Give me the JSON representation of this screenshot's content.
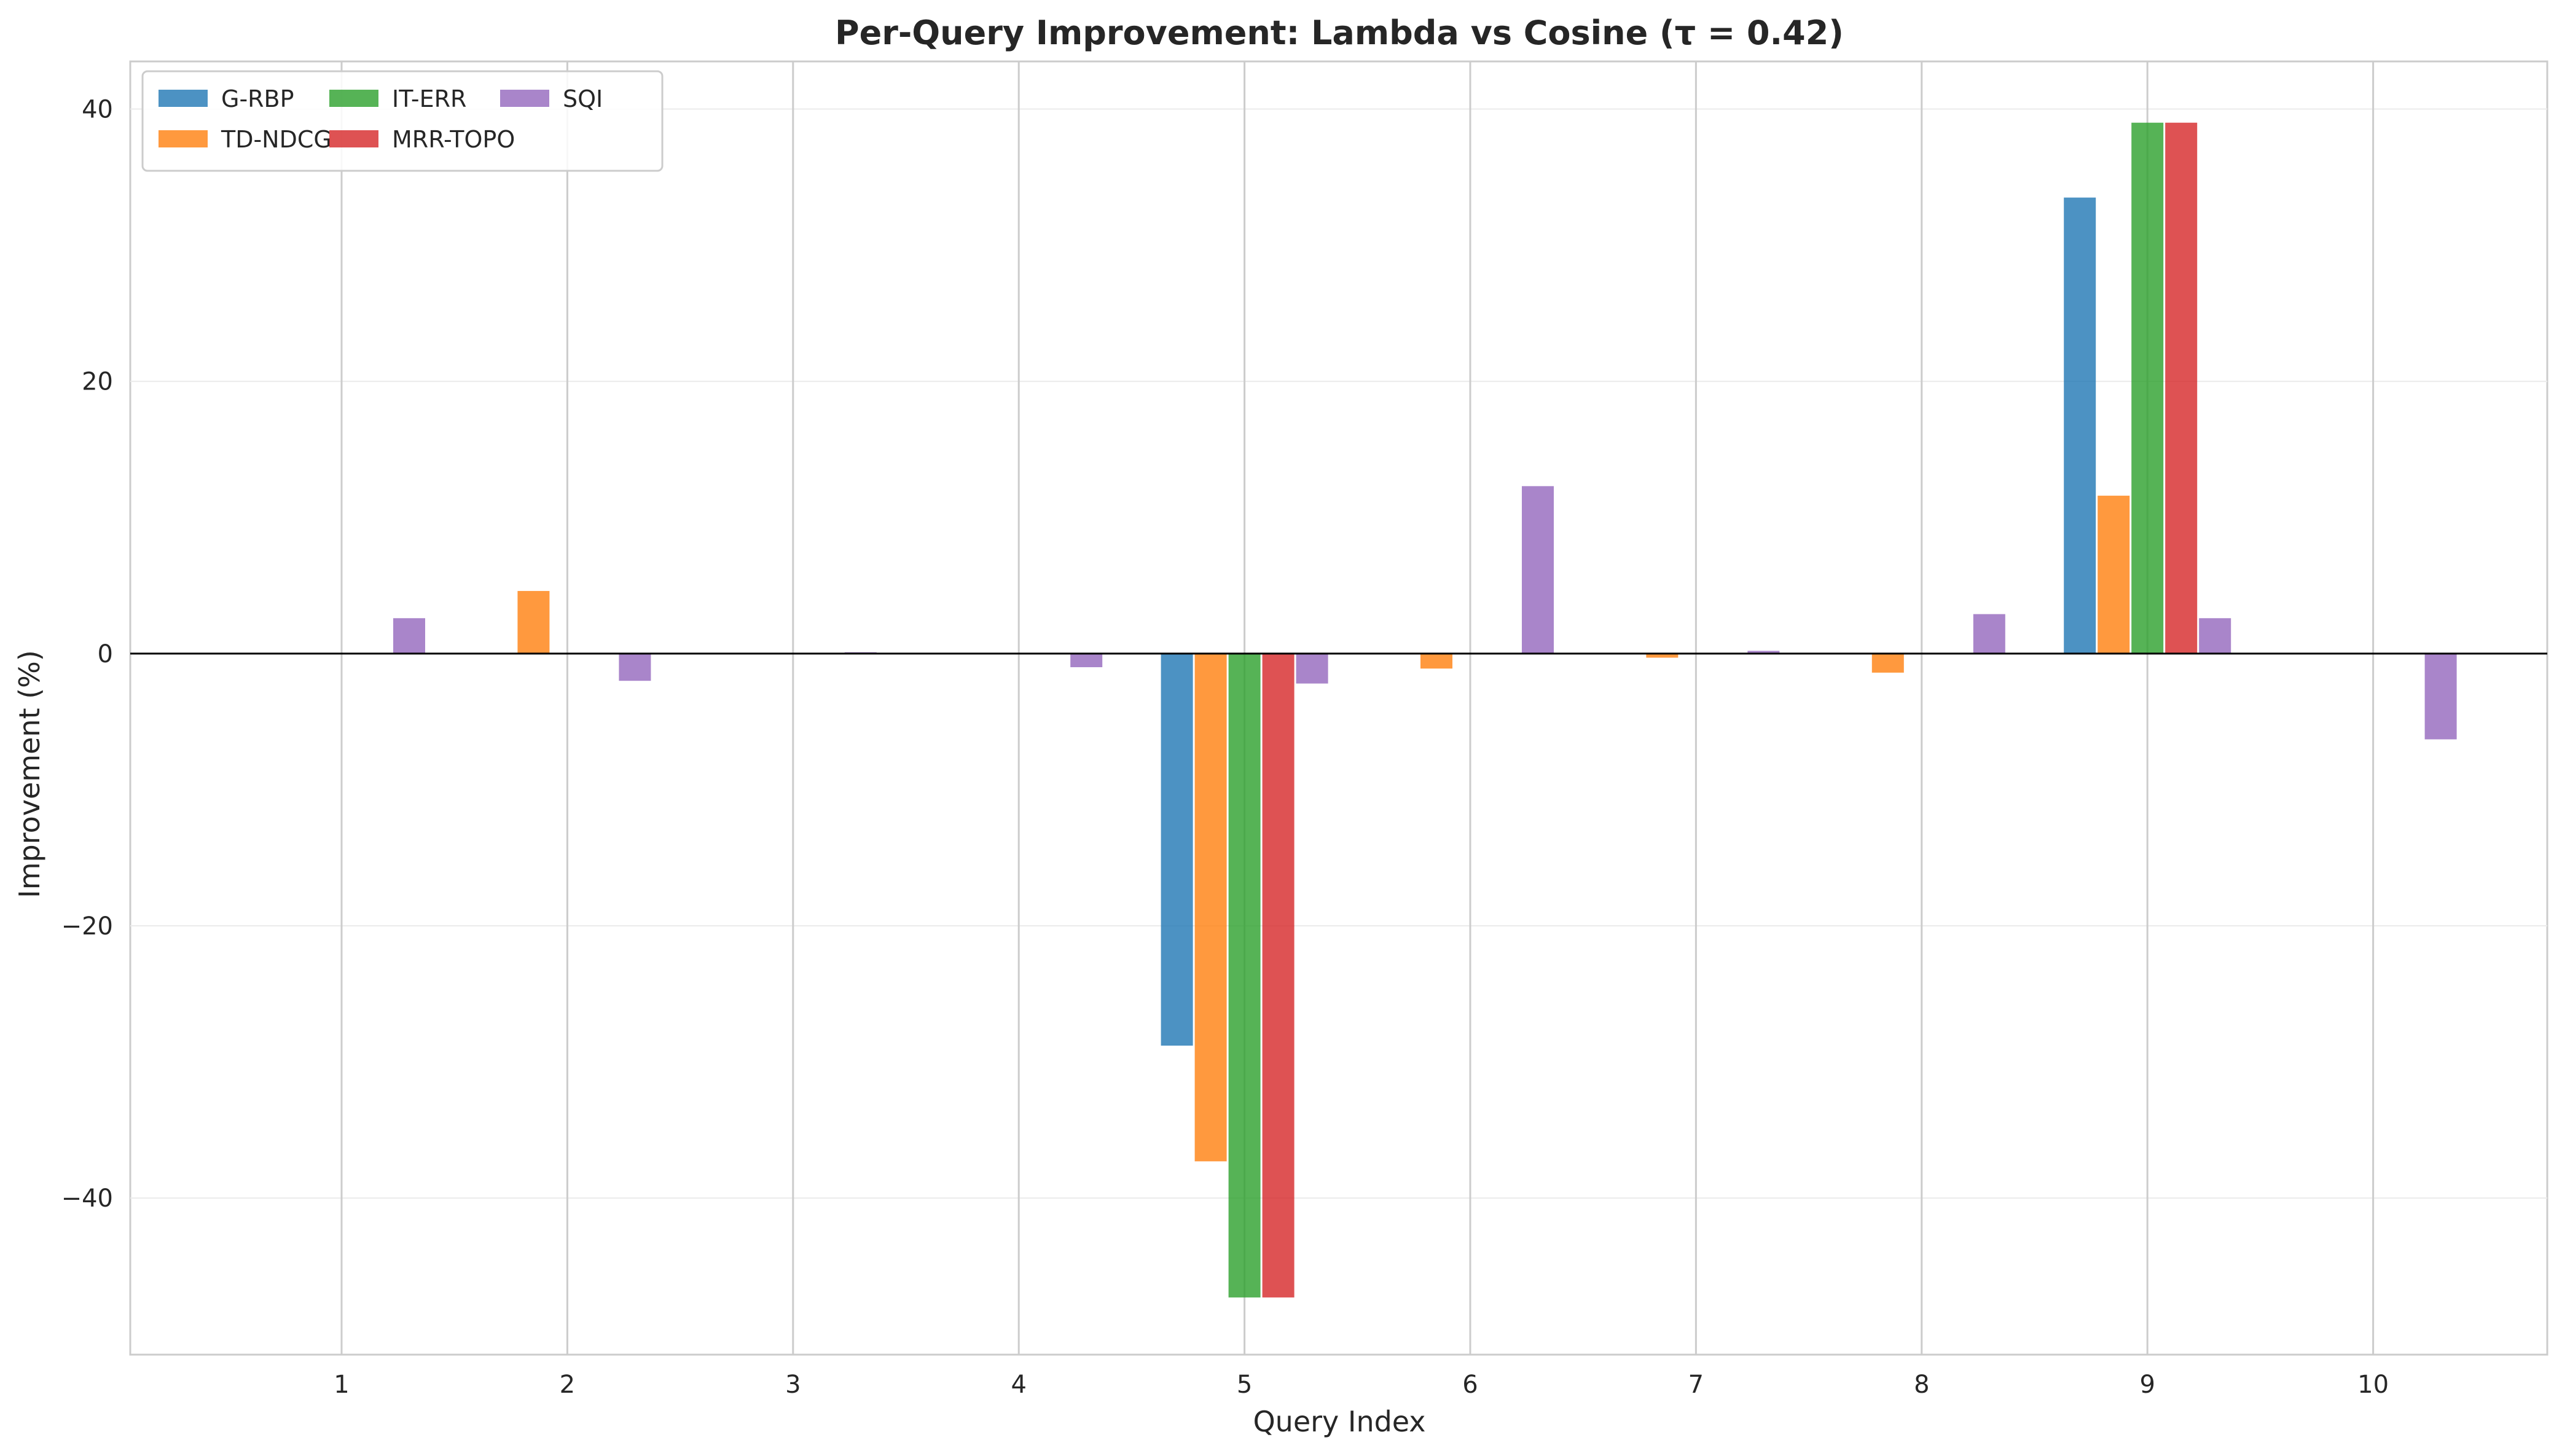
{
  "chart_data": {
    "type": "bar",
    "title": "Per-Query Improvement: Lambda vs Cosine (τ = 0.42)",
    "xlabel": "Query Index",
    "ylabel": "Improvement (%)",
    "categories": [
      "1",
      "2",
      "3",
      "4",
      "5",
      "6",
      "7",
      "8",
      "9",
      "10"
    ],
    "yticks": [
      -40,
      -20,
      0,
      20,
      40
    ],
    "ylim": [
      -51.5,
      43.5
    ],
    "grid": true,
    "legend_position": "top-left",
    "series": [
      {
        "name": "G-RBP",
        "color": "#1f77b4",
        "values": [
          0,
          0,
          0,
          0,
          -28.8,
          0,
          0,
          0,
          33.5,
          0
        ]
      },
      {
        "name": "TD-NDCG",
        "color": "#ff7f0e",
        "values": [
          0,
          4.6,
          0,
          0,
          -37.3,
          -1.1,
          -0.3,
          -1.4,
          11.6,
          0
        ]
      },
      {
        "name": "IT-ERR",
        "color": "#2ca02c",
        "values": [
          0,
          0,
          0,
          0,
          -47.3,
          0,
          0,
          0,
          39.0,
          0
        ]
      },
      {
        "name": "MRR-TOPO",
        "color": "#d62728",
        "values": [
          0,
          0,
          0,
          0,
          -47.3,
          0,
          0,
          0,
          39.0,
          0
        ]
      },
      {
        "name": "SQI",
        "color": "#9467bd",
        "values": [
          2.6,
          -2.0,
          0.1,
          -1.0,
          -2.2,
          12.3,
          0.2,
          2.9,
          2.6,
          -6.3
        ]
      }
    ]
  }
}
